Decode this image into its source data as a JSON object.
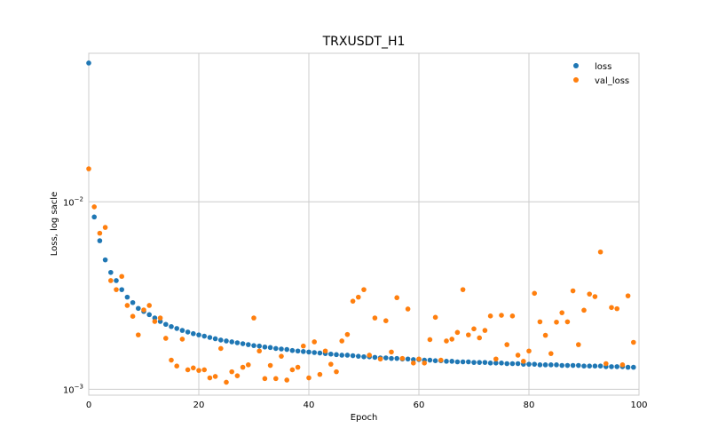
{
  "chart_data": {
    "type": "scatter",
    "title": "TRXUSDT_H1",
    "xlabel": "Epoch",
    "ylabel": "Loss, log sacle",
    "xlim": [
      0,
      100
    ],
    "ylim": [
      0.00093,
      0.062
    ],
    "yscale": "log",
    "grid": true,
    "legend_position": "top-right",
    "x_ticks": [
      "0",
      "20",
      "40",
      "60",
      "80",
      "100"
    ],
    "y_ticks": [
      {
        "value": 0.01,
        "base": "10",
        "exp": "−2"
      },
      {
        "value": 0.001,
        "base": "10",
        "exp": "−3"
      }
    ],
    "series": [
      {
        "name": "loss",
        "color": "#1f77b4",
        "x": [
          0,
          1,
          2,
          3,
          4,
          5,
          6,
          7,
          8,
          9,
          10,
          11,
          12,
          13,
          14,
          15,
          16,
          17,
          18,
          19,
          20,
          21,
          22,
          23,
          24,
          25,
          26,
          27,
          28,
          29,
          30,
          31,
          32,
          33,
          34,
          35,
          36,
          37,
          38,
          39,
          40,
          41,
          42,
          43,
          44,
          45,
          46,
          47,
          48,
          49,
          50,
          51,
          52,
          53,
          54,
          55,
          56,
          57,
          58,
          59,
          60,
          61,
          62,
          63,
          64,
          65,
          66,
          67,
          68,
          69,
          70,
          71,
          72,
          73,
          74,
          75,
          76,
          77,
          78,
          79,
          80,
          81,
          82,
          83,
          84,
          85,
          86,
          87,
          88,
          89,
          90,
          91,
          92,
          93,
          94,
          95,
          96,
          97,
          98,
          99
        ],
        "values": [
          0.055,
          0.0083,
          0.0062,
          0.0049,
          0.0042,
          0.0038,
          0.0034,
          0.0031,
          0.0029,
          0.0027,
          0.0026,
          0.0025,
          0.0024,
          0.0023,
          0.00222,
          0.00216,
          0.00211,
          0.00206,
          0.00202,
          0.00198,
          0.00195,
          0.00192,
          0.00189,
          0.00186,
          0.00183,
          0.00181,
          0.00179,
          0.00177,
          0.00175,
          0.00173,
          0.00171,
          0.0017,
          0.00168,
          0.00167,
          0.00165,
          0.00164,
          0.00163,
          0.00161,
          0.0016,
          0.00159,
          0.00158,
          0.00157,
          0.00156,
          0.00155,
          0.00154,
          0.00153,
          0.00152,
          0.00152,
          0.00151,
          0.0015,
          0.00149,
          0.00149,
          0.00148,
          0.00147,
          0.00147,
          0.00146,
          0.00146,
          0.00145,
          0.00145,
          0.00144,
          0.00144,
          0.00143,
          0.00143,
          0.00142,
          0.00142,
          0.00141,
          0.00141,
          0.0014,
          0.0014,
          0.0014,
          0.00139,
          0.00139,
          0.00139,
          0.00138,
          0.00138,
          0.00138,
          0.00137,
          0.00137,
          0.00137,
          0.00136,
          0.00136,
          0.00136,
          0.00135,
          0.00135,
          0.00135,
          0.00135,
          0.00134,
          0.00134,
          0.00134,
          0.00134,
          0.00133,
          0.00133,
          0.00133,
          0.00133,
          0.00132,
          0.00132,
          0.00132,
          0.00132,
          0.00131,
          0.00131
        ]
      },
      {
        "name": "val_loss",
        "color": "#ff7f0e",
        "x": [
          0,
          1,
          2,
          3,
          4,
          5,
          6,
          7,
          8,
          9,
          10,
          11,
          12,
          13,
          14,
          15,
          16,
          17,
          18,
          19,
          20,
          21,
          22,
          23,
          24,
          25,
          26,
          27,
          28,
          29,
          30,
          31,
          32,
          33,
          34,
          35,
          36,
          37,
          38,
          39,
          40,
          41,
          42,
          43,
          44,
          45,
          46,
          47,
          48,
          49,
          50,
          51,
          52,
          53,
          54,
          55,
          56,
          57,
          58,
          59,
          60,
          61,
          62,
          63,
          64,
          65,
          66,
          67,
          68,
          69,
          70,
          71,
          72,
          73,
          74,
          75,
          76,
          77,
          78,
          79,
          80,
          81,
          82,
          83,
          84,
          85,
          86,
          87,
          88,
          89,
          90,
          91,
          92,
          93,
          94,
          95,
          96,
          97,
          98,
          99
        ],
        "values": [
          0.015,
          0.0094,
          0.0068,
          0.0073,
          0.0038,
          0.0034,
          0.004,
          0.0028,
          0.00245,
          0.00195,
          0.00265,
          0.0028,
          0.0023,
          0.0024,
          0.00187,
          0.00143,
          0.00133,
          0.00185,
          0.00127,
          0.0013,
          0.00126,
          0.00127,
          0.00115,
          0.00117,
          0.00165,
          0.00109,
          0.00124,
          0.00118,
          0.00131,
          0.00135,
          0.0024,
          0.0016,
          0.00114,
          0.00134,
          0.00114,
          0.0015,
          0.00112,
          0.00127,
          0.00131,
          0.0017,
          0.00115,
          0.00179,
          0.0012,
          0.0016,
          0.00136,
          0.00124,
          0.00181,
          0.00196,
          0.00295,
          0.0031,
          0.0034,
          0.00152,
          0.0024,
          0.00145,
          0.00232,
          0.00158,
          0.00308,
          0.00146,
          0.00268,
          0.00138,
          0.00145,
          0.00138,
          0.00184,
          0.00242,
          0.00143,
          0.00181,
          0.00185,
          0.00201,
          0.0034,
          0.00195,
          0.0021,
          0.00188,
          0.00206,
          0.00246,
          0.00145,
          0.00248,
          0.00173,
          0.00246,
          0.00152,
          0.00141,
          0.0016,
          0.00325,
          0.00229,
          0.00194,
          0.00155,
          0.00228,
          0.00256,
          0.00229,
          0.00335,
          0.00173,
          0.00264,
          0.00322,
          0.00312,
          0.0054,
          0.00137,
          0.00273,
          0.00269,
          0.00135,
          0.00315,
          0.00178
        ]
      }
    ]
  }
}
